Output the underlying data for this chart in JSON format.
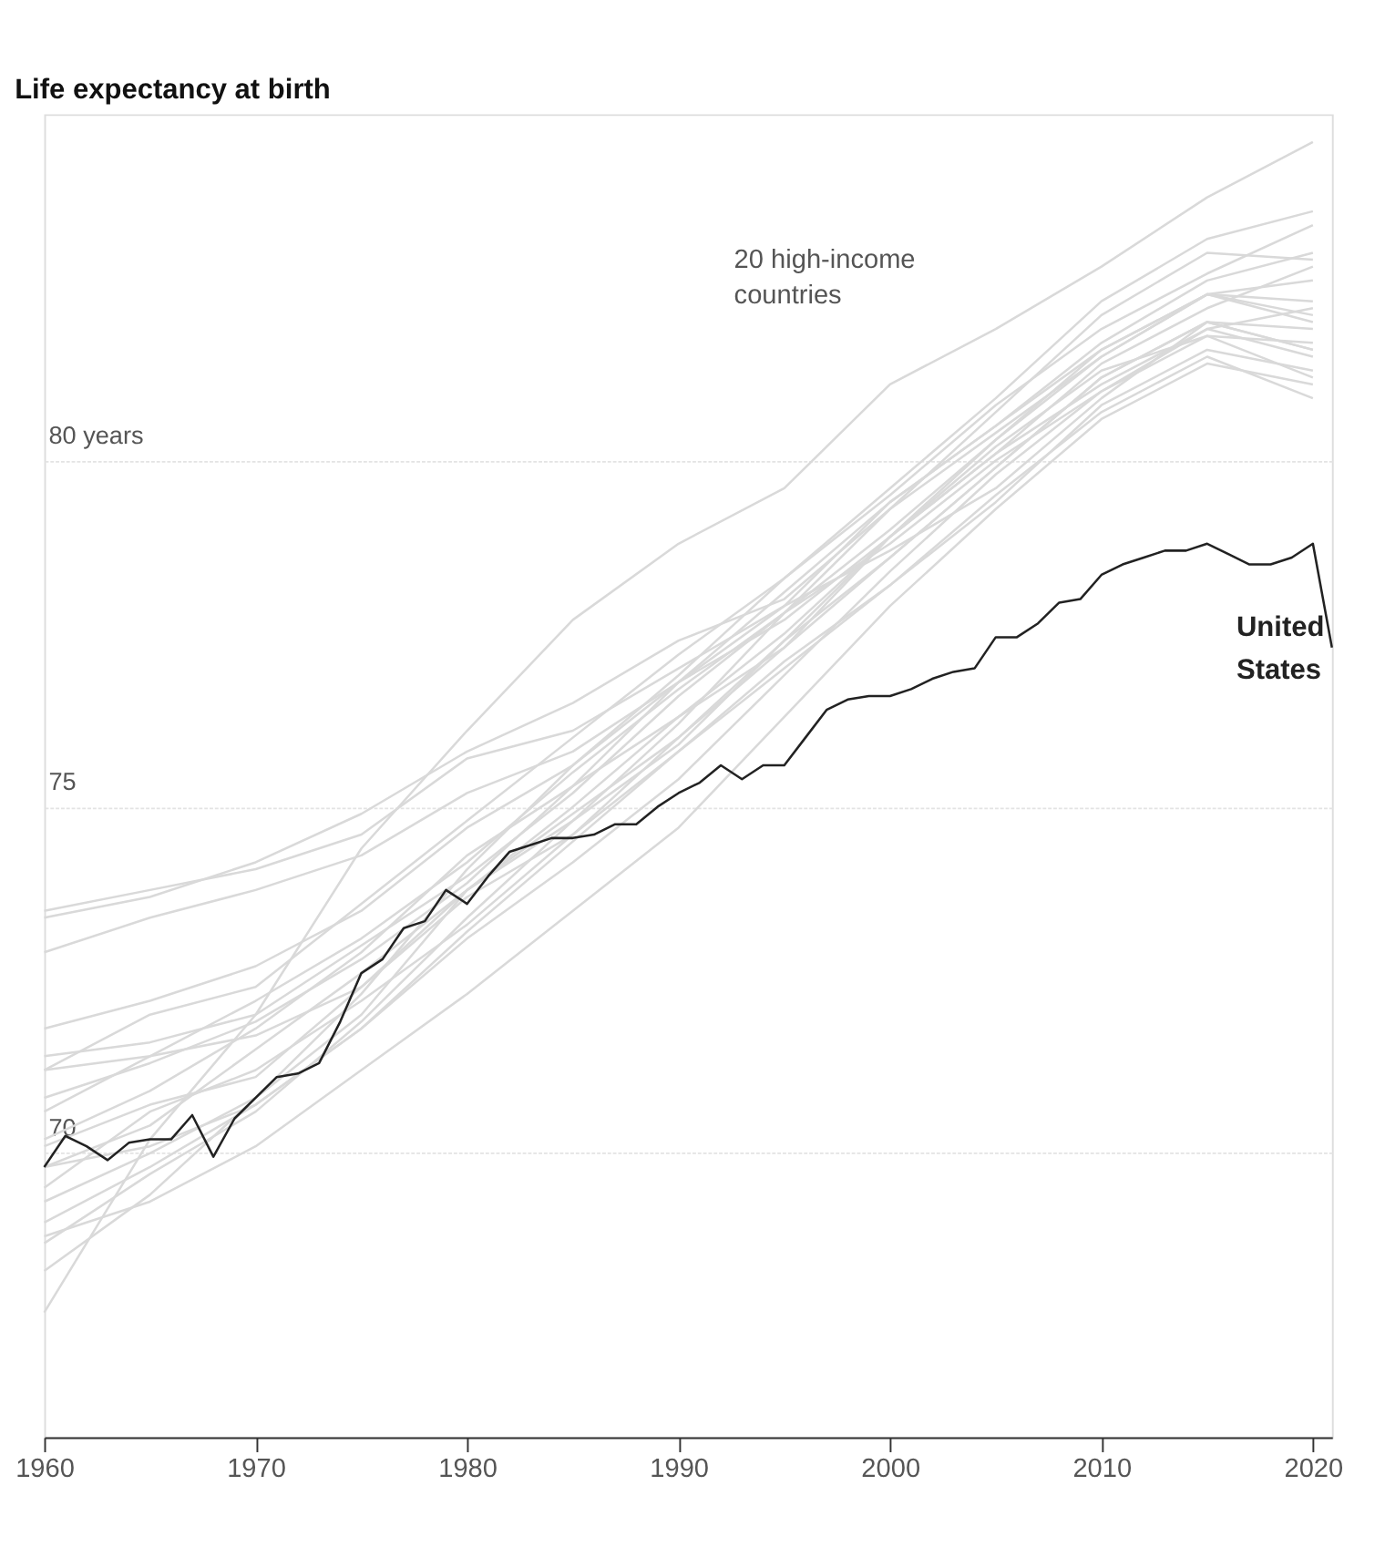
{
  "chart_data": {
    "type": "line",
    "title": "Life expectancy at birth",
    "annotations": [
      "20 high-income\ncountries"
    ],
    "x": [
      1960,
      1965,
      1970,
      1975,
      1980,
      1985,
      1990,
      1995,
      2000,
      2005,
      2010,
      2015,
      2020
    ],
    "xlim": [
      1960,
      2020.9
    ],
    "xticks": [
      1960,
      1970,
      1980,
      1990,
      2000,
      2010,
      2020
    ],
    "ylim": [
      65.9,
      85
    ],
    "yticks": [
      70,
      75,
      {
        "value": 80,
        "label": "80 years"
      }
    ],
    "grid": "y",
    "legend": false,
    "marker": "none",
    "line_style": "solid",
    "series": [
      {
        "color": "#d9d9d9",
        "values": [
          67.7,
          70.2,
          72.0,
          74.4,
          76.1,
          77.7,
          78.8,
          79.6,
          81.1,
          81.9,
          82.8,
          83.8,
          84.6
        ]
      },
      {
        "color": "#d9d9d9",
        "values": [
          73.5,
          73.8,
          74.1,
          74.6,
          75.7,
          76.1,
          77.0,
          77.9,
          78.7,
          79.6,
          80.9,
          82.0,
          81.6
        ]
      },
      {
        "color": "#d9d9d9",
        "values": [
          73.4,
          73.7,
          74.2,
          74.9,
          75.8,
          76.5,
          77.4,
          78.0,
          79.3,
          80.4,
          81.5,
          82.4,
          82.3
        ]
      },
      {
        "color": "#d9d9d9",
        "values": [
          72.9,
          73.4,
          73.8,
          74.3,
          75.2,
          75.8,
          76.8,
          77.7,
          78.9,
          80.1,
          81.4,
          82.2,
          82.8
        ]
      },
      {
        "color": "#d9d9d9",
        "values": [
          71.8,
          72.2,
          72.7,
          73.5,
          74.7,
          75.6,
          76.8,
          77.9,
          79.4,
          80.5,
          81.7,
          82.6,
          83.0
        ]
      },
      {
        "color": "#d9d9d9",
        "values": [
          71.2,
          72.0,
          72.4,
          73.6,
          74.8,
          76.0,
          77.2,
          78.3,
          79.5,
          80.8,
          81.9,
          82.7,
          83.4
        ]
      },
      {
        "color": "#d9d9d9",
        "values": [
          70.8,
          71.3,
          71.9,
          72.8,
          73.9,
          75.3,
          76.8,
          78.1,
          79.4,
          80.5,
          81.6,
          82.4,
          82.1
        ]
      },
      {
        "color": "#d9d9d9",
        "values": [
          71.4,
          71.6,
          72.0,
          73.0,
          74.0,
          75.2,
          76.6,
          77.8,
          78.8,
          80.0,
          81.0,
          81.9,
          82.2
        ]
      },
      {
        "color": "#d9d9d9",
        "values": [
          70.6,
          71.4,
          72.2,
          73.1,
          74.2,
          75.5,
          76.7,
          77.8,
          79.0,
          80.3,
          81.5,
          82.4,
          82.0
        ]
      },
      {
        "color": "#d9d9d9",
        "values": [
          71.2,
          71.4,
          71.7,
          72.4,
          73.7,
          74.6,
          75.8,
          77.0,
          78.2,
          79.4,
          80.8,
          81.6,
          81.3
        ]
      },
      {
        "color": "#d9d9d9",
        "values": [
          69.8,
          70.4,
          71.5,
          72.6,
          73.8,
          74.9,
          76.0,
          77.4,
          78.6,
          79.9,
          81.2,
          82.0,
          81.6
        ]
      },
      {
        "color": "#d9d9d9",
        "values": [
          70.2,
          70.9,
          71.8,
          72.9,
          74.3,
          75.3,
          76.3,
          77.5,
          78.9,
          80.2,
          81.3,
          81.8,
          81.2
        ]
      },
      {
        "color": "#d9d9d9",
        "values": [
          69.3,
          70.0,
          70.8,
          72.0,
          73.8,
          75.0,
          76.3,
          77.3,
          78.6,
          79.9,
          81.2,
          82.0,
          81.9
        ]
      },
      {
        "color": "#d9d9d9",
        "values": [
          69.0,
          69.8,
          70.7,
          71.8,
          73.1,
          74.2,
          75.4,
          76.9,
          78.4,
          79.8,
          81.0,
          81.8,
          81.7
        ]
      },
      {
        "color": "#d9d9d9",
        "values": [
          68.7,
          69.7,
          70.6,
          71.9,
          73.4,
          74.8,
          76.2,
          77.8,
          79.3,
          80.7,
          82.1,
          83.0,
          82.9
        ]
      },
      {
        "color": "#d9d9d9",
        "values": [
          68.3,
          69.4,
          70.8,
          72.3,
          74.1,
          75.6,
          76.9,
          78.3,
          79.6,
          80.9,
          82.3,
          83.2,
          83.6
        ]
      },
      {
        "color": "#d9d9d9",
        "values": [
          69.8,
          70.1,
          70.7,
          71.8,
          73.2,
          74.5,
          75.8,
          77.1,
          78.2,
          79.5,
          80.7,
          81.5,
          80.9
        ]
      },
      {
        "color": "#d9d9d9",
        "values": [
          68.8,
          69.3,
          70.1,
          71.2,
          72.3,
          73.5,
          74.7,
          76.3,
          77.9,
          79.3,
          80.6,
          81.4,
          81.1
        ]
      },
      {
        "color": "#d9d9d9",
        "values": [
          69.5,
          70.6,
          71.2,
          72.2,
          73.3,
          74.6,
          76.0,
          77.3,
          78.9,
          80.3,
          81.6,
          82.4,
          82.6
        ]
      },
      {
        "color": "#d9d9d9",
        "values": [
          70.1,
          70.7,
          71.1,
          72.4,
          73.8,
          74.8,
          75.9,
          77.4,
          78.9,
          80.1,
          81.1,
          81.9,
          81.5
        ]
      },
      {
        "name": "United States",
        "color": "#222222",
        "x": [
          1960,
          1961,
          1962,
          1963,
          1964,
          1965,
          1966,
          1967,
          1968,
          1969,
          1970,
          1971,
          1972,
          1973,
          1974,
          1975,
          1976,
          1977,
          1978,
          1979,
          1980,
          1981,
          1982,
          1983,
          1984,
          1985,
          1986,
          1987,
          1988,
          1989,
          1990,
          1991,
          1992,
          1993,
          1994,
          1995,
          1996,
          1997,
          1998,
          1999,
          2000,
          2001,
          2002,
          2003,
          2004,
          2005,
          2006,
          2007,
          2008,
          2009,
          2010,
          2011,
          2012,
          2013,
          2014,
          2015,
          2016,
          2017,
          2018,
          2019,
          2020,
          2020.9
        ],
        "values": [
          69.8,
          70.25,
          70.1,
          69.9,
          70.15,
          70.2,
          70.2,
          70.55,
          69.95,
          70.5,
          70.8,
          71.1,
          71.15,
          71.3,
          71.9,
          72.6,
          72.8,
          73.25,
          73.35,
          73.8,
          73.6,
          74.0,
          74.35,
          74.45,
          74.55,
          74.55,
          74.6,
          74.75,
          74.75,
          75.0,
          75.2,
          75.35,
          75.6,
          75.4,
          75.6,
          75.6,
          76.0,
          76.4,
          76.55,
          76.6,
          76.6,
          76.7,
          76.85,
          76.95,
          77.0,
          77.45,
          77.45,
          77.65,
          77.95,
          78.0,
          78.35,
          78.5,
          78.6,
          78.7,
          78.7,
          78.8,
          78.65,
          78.5,
          78.5,
          78.6,
          78.8,
          77.3
        ]
      }
    ]
  }
}
